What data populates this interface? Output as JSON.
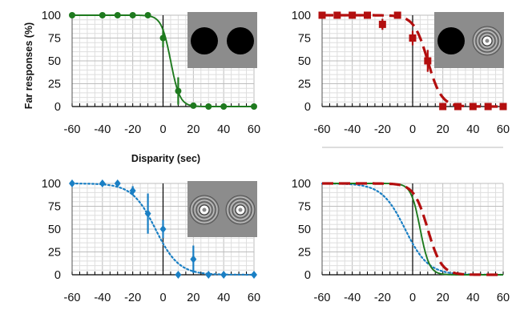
{
  "figure": {
    "ylabel": "Far responses (%)",
    "xlabel": "Disparity (sec)"
  },
  "chart_data": [
    {
      "type": "line",
      "panel": "top-left",
      "x_ticks": [
        -60,
        -40,
        -20,
        0,
        20,
        40,
        60
      ],
      "y_ticks": [
        0,
        25,
        50,
        75,
        100
      ],
      "xlim": [
        -60,
        60
      ],
      "ylim": [
        0,
        100
      ],
      "grid": true,
      "series": [
        {
          "kind": "fit",
          "style": "solid",
          "color": "#1e7a1e",
          "midpoint": 5,
          "slope": 0.33
        },
        {
          "kind": "points",
          "color": "#1e7a1e",
          "marker": "circle",
          "x": [
            -60,
            -40,
            -30,
            -20,
            -10,
            0,
            10,
            20,
            30,
            40,
            60
          ],
          "y": [
            100,
            100,
            100,
            100,
            100,
            75,
            17,
            1,
            0,
            0,
            0
          ],
          "err": [
            0,
            0,
            0,
            0,
            0,
            10,
            15,
            0,
            0,
            0,
            0
          ]
        }
      ],
      "inset": {
        "left": "solid-disk",
        "right": "solid-disk"
      }
    },
    {
      "type": "line",
      "panel": "top-right",
      "x_ticks": [
        -60,
        -40,
        -20,
        0,
        20,
        40,
        60
      ],
      "y_ticks": [
        0,
        25,
        50,
        75,
        100
      ],
      "xlim": [
        -60,
        60
      ],
      "ylim": [
        0,
        100
      ],
      "grid": true,
      "series": [
        {
          "kind": "fit",
          "style": "dashed",
          "color": "#b30f0f",
          "midpoint": 10,
          "slope": 0.22
        },
        {
          "kind": "points",
          "color": "#b30f0f",
          "marker": "square",
          "x": [
            -60,
            -50,
            -40,
            -30,
            -20,
            -10,
            0,
            10,
            20,
            30,
            40,
            50,
            60
          ],
          "y": [
            100,
            100,
            100,
            100,
            90,
            100,
            75,
            50,
            0,
            0,
            0,
            0,
            0
          ],
          "err": [
            0,
            0,
            0,
            0,
            6,
            0,
            8,
            12,
            0,
            0,
            0,
            0,
            0
          ]
        }
      ],
      "inset": {
        "left": "solid-disk",
        "right": "ring-pattern"
      }
    },
    {
      "type": "line",
      "panel": "bottom-left",
      "x_ticks": [
        -60,
        -40,
        -20,
        0,
        20,
        40,
        60
      ],
      "y_ticks": [
        0,
        25,
        50,
        75,
        100
      ],
      "xlim": [
        -60,
        60
      ],
      "ylim": [
        0,
        100
      ],
      "grid": true,
      "series": [
        {
          "kind": "fit",
          "style": "dotted",
          "color": "#1a7fc4",
          "midpoint": -5,
          "slope": 0.13
        },
        {
          "kind": "points",
          "color": "#1a7fc4",
          "marker": "diamond",
          "x": [
            -60,
            -40,
            -30,
            -20,
            -10,
            0,
            10,
            20,
            30,
            40,
            60
          ],
          "y": [
            100,
            100,
            100,
            92,
            67,
            50,
            0,
            17,
            0,
            0,
            0
          ],
          "err": [
            0,
            0,
            0,
            5,
            22,
            10,
            0,
            15,
            0,
            0,
            0
          ]
        }
      ],
      "inset": {
        "left": "ring-pattern",
        "right": "ring-pattern"
      }
    },
    {
      "type": "line",
      "panel": "bottom-right",
      "x_ticks": [
        -60,
        -40,
        -20,
        0,
        20,
        40,
        60
      ],
      "y_ticks": [
        0,
        25,
        50,
        75,
        100
      ],
      "xlim": [
        -60,
        60
      ],
      "ylim": [
        0,
        100
      ],
      "grid": true,
      "series": [
        {
          "kind": "fit",
          "style": "dotted",
          "color": "#1a7fc4",
          "midpoint": -5,
          "slope": 0.13
        },
        {
          "kind": "fit",
          "style": "solid",
          "color": "#1e7a1e",
          "midpoint": 5,
          "slope": 0.33
        },
        {
          "kind": "fit",
          "style": "dashed",
          "color": "#b30f0f",
          "midpoint": 10,
          "slope": 0.22
        }
      ]
    }
  ]
}
